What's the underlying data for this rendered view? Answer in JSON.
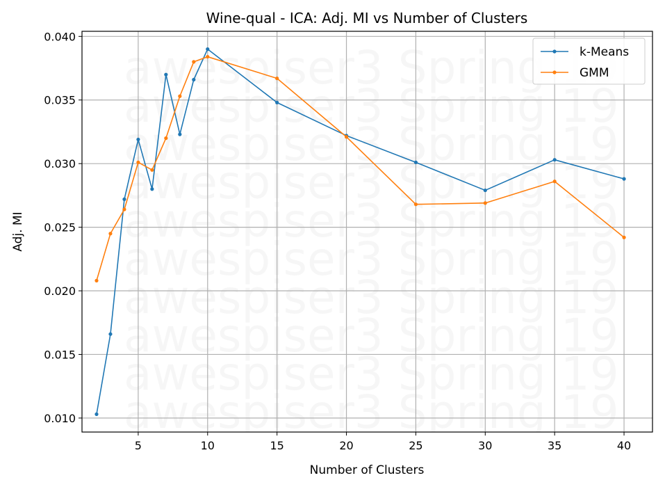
{
  "chart_data": {
    "type": "line",
    "title": "Wine-qual - ICA: Adj. MI vs Number of Clusters",
    "xlabel": "Number of Clusters",
    "ylabel": "Adj. MI",
    "xlim": [
      0.95,
      42.05
    ],
    "ylim": [
      0.0089,
      0.0404
    ],
    "xticks": [
      5,
      10,
      15,
      20,
      25,
      30,
      35,
      40
    ],
    "yticks": [
      0.01,
      0.015,
      0.02,
      0.025,
      0.03,
      0.035,
      0.04
    ],
    "ytick_labels": [
      "0.010",
      "0.015",
      "0.020",
      "0.025",
      "0.030",
      "0.035",
      "0.040"
    ],
    "grid": true,
    "legend_position": "top-right",
    "x": [
      2,
      3,
      4,
      5,
      6,
      7,
      8,
      9,
      10,
      15,
      20,
      25,
      30,
      35,
      40
    ],
    "series": [
      {
        "name": "k-Means",
        "color": "#1f77b4",
        "values": [
          0.0103,
          0.0166,
          0.0272,
          0.0319,
          0.028,
          0.037,
          0.0323,
          0.0366,
          0.039,
          0.0348,
          0.0322,
          0.0301,
          0.0279,
          0.0303,
          0.0288
        ]
      },
      {
        "name": "GMM",
        "color": "#ff7f0e",
        "values": [
          0.0208,
          0.0245,
          0.0264,
          0.0301,
          0.0295,
          0.032,
          0.0353,
          0.038,
          0.0384,
          0.0367,
          0.0321,
          0.0268,
          0.0269,
          0.0286,
          0.0242
        ]
      }
    ],
    "watermark": "awespiser3 Spring 19"
  }
}
